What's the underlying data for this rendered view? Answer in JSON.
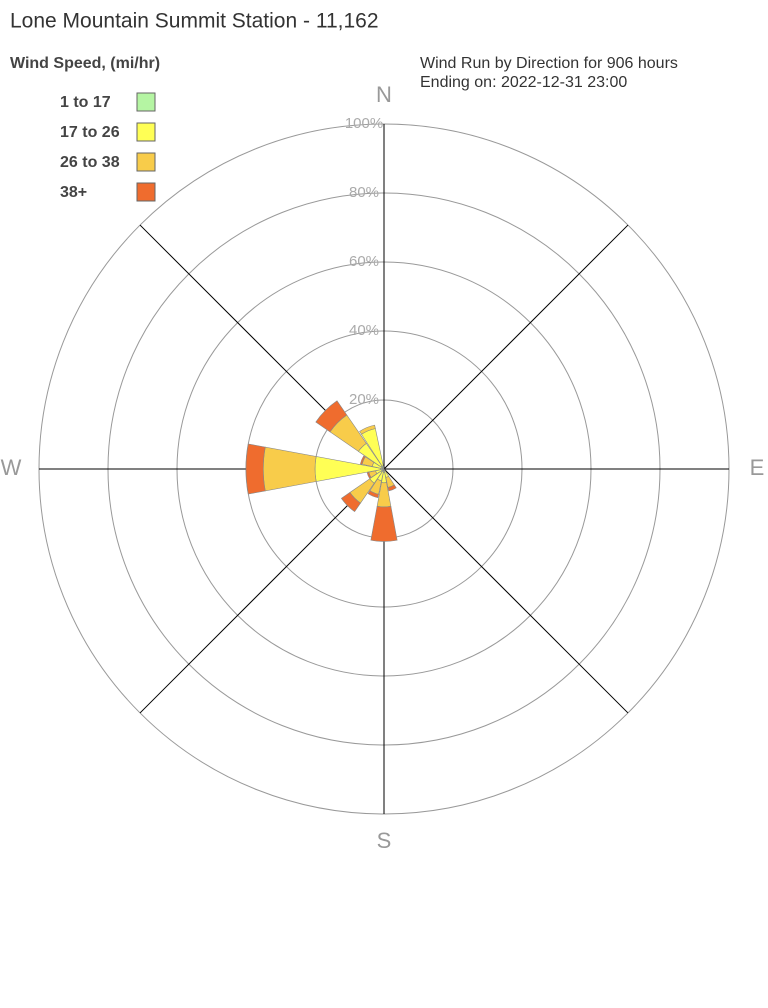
{
  "chart_data": {
    "type": "wind_rose",
    "title": "Lone Mountain Summit Station - 11,162",
    "subtitle": [
      "Wind Run by Direction for 906 hours",
      "Ending on: 2022-12-31 23:00"
    ],
    "legend_title": "Wind Speed, (mi/hr)",
    "categories": [
      "N",
      null,
      null,
      null,
      "E",
      null,
      null,
      null,
      "S",
      null,
      null,
      null,
      "W",
      null,
      null,
      null
    ],
    "series": [
      {
        "name": "1 to 17",
        "color": "#b5f5a3",
        "values": [
          0,
          0,
          0,
          0,
          0,
          0,
          0,
          0.5,
          1,
          0.5,
          1,
          0.5,
          1,
          0.5,
          1,
          1
        ]
      },
      {
        "name": "17 to 26",
        "color": "#ffff55",
        "values": [
          0,
          0,
          0,
          0,
          0,
          0,
          0,
          2,
          3,
          3,
          4,
          2,
          19,
          3,
          8,
          11
        ]
      },
      {
        "name": "26 to 38",
        "color": "#f8cc4a",
        "values": [
          0,
          0,
          0,
          0,
          0,
          0,
          0,
          3,
          7,
          4,
          7,
          2,
          15,
          3,
          10,
          1
        ]
      },
      {
        "name": "38+",
        "color": "#ef6c2e",
        "values": [
          0,
          0,
          0,
          0,
          0,
          0,
          0,
          1,
          10,
          1,
          3,
          0.5,
          5,
          0.5,
          5,
          0
        ]
      }
    ],
    "ylim": [
      0,
      100
    ],
    "yticks": [
      {
        "value": 20,
        "label": "20%"
      },
      {
        "value": 40,
        "label": "40%"
      },
      {
        "value": 60,
        "label": "60%"
      },
      {
        "value": 80,
        "label": "80%"
      },
      {
        "value": 100,
        "label": "100%"
      }
    ],
    "legend": "upper left"
  }
}
